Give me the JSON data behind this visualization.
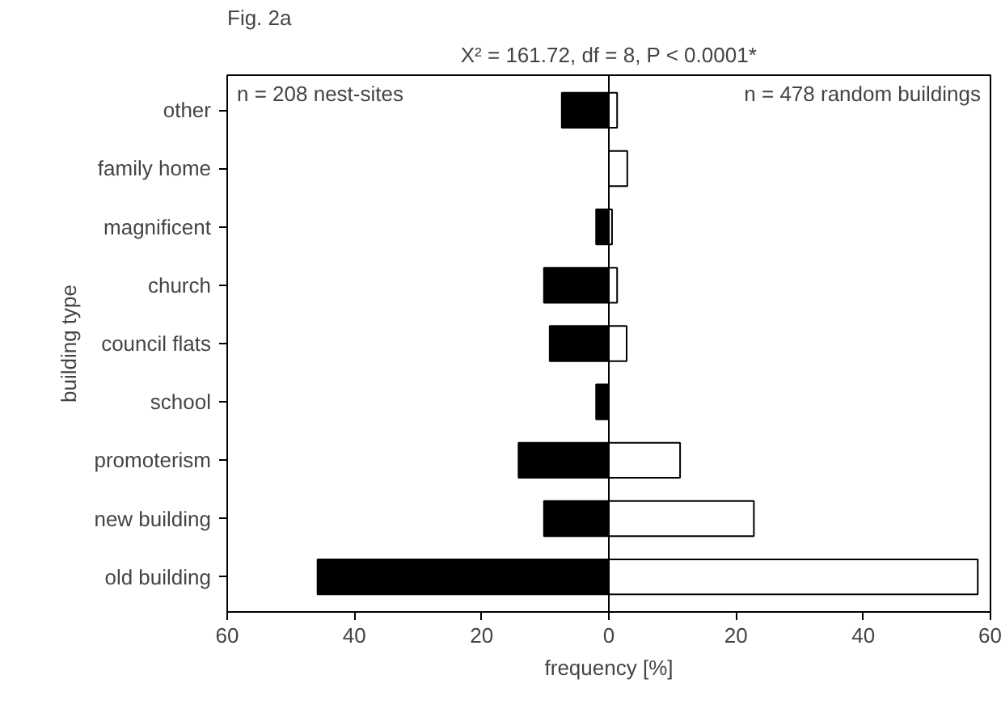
{
  "chart_data": {
    "type": "bar",
    "orientation": "horizontal",
    "title": "Fig. 2a",
    "subtitle": "X² = 161.72, df = 8, P < 0.0001*",
    "xlabel": "frequency [%]",
    "ylabel": "building type",
    "categories": [
      "other",
      "family home",
      "magnificent",
      "church",
      "council flats",
      "school",
      "promoterism",
      "new building",
      "old building"
    ],
    "series": [
      {
        "color": "#000000",
        "values": [
          -7.4,
          0,
          -2,
          -10.2,
          -9.3,
          -2,
          -14.2,
          -10.2,
          -45.8
        ]
      },
      {
        "color": "#ffffff",
        "values": [
          1.3,
          2.9,
          0.5,
          1.3,
          2.8,
          0,
          11.2,
          22.8,
          58
        ]
      }
    ],
    "xlim": [
      -60,
      60
    ],
    "xticks": [
      {
        "value": -60,
        "label": "60"
      },
      {
        "value": -40,
        "label": "40"
      },
      {
        "value": -20,
        "label": "20"
      },
      0,
      20,
      40,
      60
    ],
    "annotations": [
      "n = 208 nest-sites",
      "n = 478 random buildings"
    ],
    "ref_lines": [
      {
        "axis": "x",
        "value": 0
      }
    ],
    "stacked": true
  }
}
